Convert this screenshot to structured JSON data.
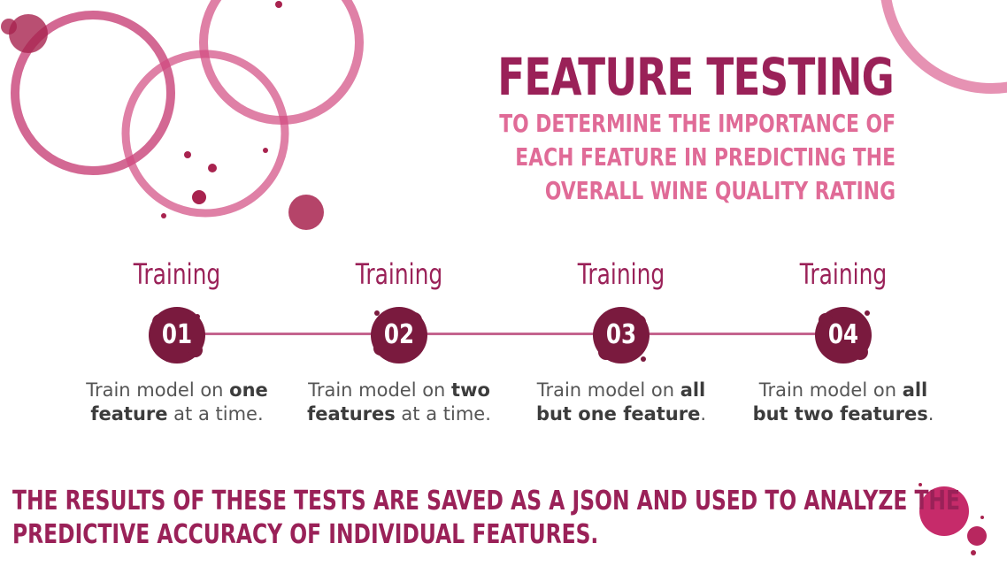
{
  "header": {
    "title": "FEATURE TESTING",
    "subtitle_lines": [
      "TO DETERMINE THE IMPORTANCE OF",
      "EACH FEATURE IN PREDICTING THE",
      "OVERALL WINE QUALITY RATING"
    ]
  },
  "steps": [
    {
      "label": "Training",
      "number": "01",
      "pre": "Train model on ",
      "bold": "one feature",
      "post": " at a time."
    },
    {
      "label": "Training",
      "number": "02",
      "pre": "Train model on ",
      "bold": "two features",
      "post": " at a time."
    },
    {
      "label": "Training",
      "number": "03",
      "pre": "Train model on ",
      "bold": "all but one feature",
      "post": "."
    },
    {
      "label": "Training",
      "number": "04",
      "pre": "Train model on ",
      "bold": "all but two features",
      "post": "."
    }
  ],
  "footer": {
    "lines": [
      "THE RESULTS OF THESE TESTS ARE SAVED AS A JSON AND USED TO ANALYZE THE",
      "PREDICTIVE ACCURACY OF INDIVIDUAL FEATURES."
    ]
  },
  "colors": {
    "title": "#9a2158",
    "subtitle": "#e06b97",
    "stain": "#c4356f",
    "blob": "#7a1a3e",
    "text": "#555555"
  }
}
